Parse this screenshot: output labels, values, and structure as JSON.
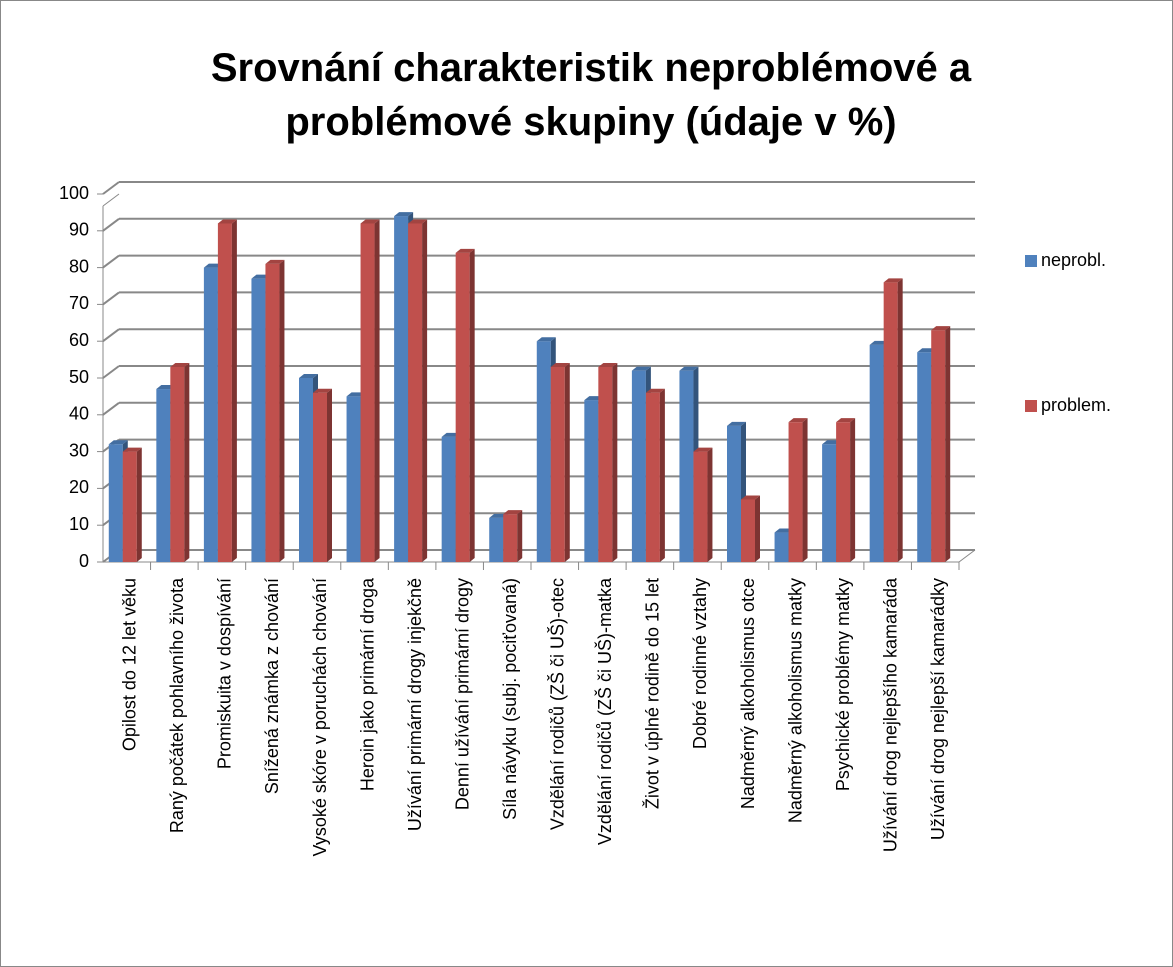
{
  "chart_data": {
    "type": "bar",
    "title": "Srovnání charakteristik neproblémové a problémové skupiny (údaje v %)",
    "categories": [
      "Opilost do 12 let věku",
      "Raný počátek pohlavního života",
      "Promiskuita v dospívání",
      "Snížená známka z chování",
      "Vysoké skóre v poruchách chování",
      "Heroin jako primární droga",
      "Užívání primární drogy injekčně",
      "Denní užívání primární drogy",
      "Síla návyku (subj. pociťovaná)",
      "Vzdělání rodičů (ZŠ či UŠ)-otec",
      "Vzdělání rodičů (ZŠ či UŠ)-matka",
      "Život v úplné rodině do 15 let",
      "Dobré rodinné vztahy",
      "Nadměrný alkoholismus otce",
      "Nadměrný alkoholismus matky",
      "Psychické problémy matky",
      "Užívání drog nejlepšího kamaráda",
      "Užívání drog nejlepší kamarádky"
    ],
    "series": [
      {
        "name": "neprobl.",
        "color": "#4f81bd",
        "values": [
          32,
          47,
          80,
          77,
          50,
          45,
          94,
          34,
          12,
          60,
          44,
          52,
          52,
          37,
          8,
          32,
          59,
          57
        ]
      },
      {
        "name": "problem.",
        "color": "#c0504d",
        "values": [
          30,
          53,
          92,
          81,
          46,
          92,
          92,
          84,
          13,
          53,
          53,
          46,
          30,
          17,
          38,
          38,
          76,
          63
        ]
      }
    ],
    "ylim": [
      0,
      100
    ],
    "yticks": [
      0,
      10,
      20,
      30,
      40,
      50,
      60,
      70,
      80,
      90,
      100
    ],
    "grid": true
  }
}
